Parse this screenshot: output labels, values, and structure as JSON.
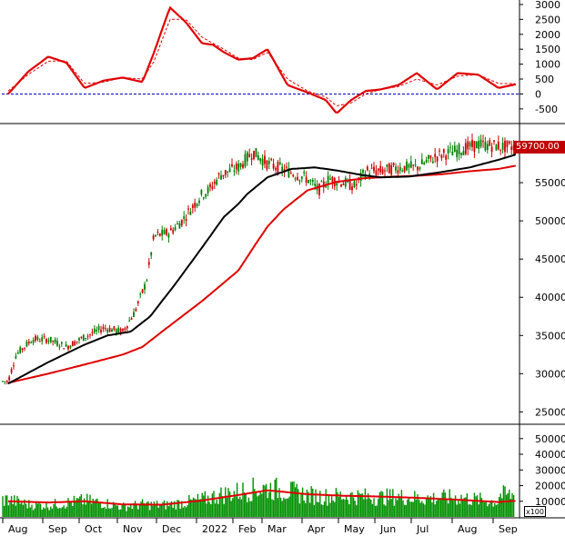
{
  "price_label": "59700.00",
  "scale_note": "x100",
  "months": [
    "Aug",
    "Sep",
    "Oct",
    "Nov",
    "Dec",
    "2022",
    "Feb",
    "Mar",
    "Apr",
    "May",
    "Jun",
    "Jul",
    "Aug",
    "Sep"
  ],
  "colors": {
    "up": "#008000",
    "down": "#d00000",
    "ma_fast": "#000000",
    "ma_slow": "#e00000",
    "macd": "#e00000",
    "zero_line": "#0000cc",
    "volume": "#009000"
  },
  "chart_data": [
    {
      "type": "line",
      "panel": "oscillator",
      "yticks": [
        -500,
        0,
        500,
        1000,
        1500,
        2000,
        2500,
        3000
      ],
      "ylim": [
        -900,
        3150
      ],
      "reference_line": 0,
      "series": [
        {
          "style": "solid",
          "values": [
            [
              0,
              0
            ],
            [
              0.5,
              750
            ],
            [
              1,
              1250
            ],
            [
              1.5,
              1050
            ],
            [
              2,
              200
            ],
            [
              2.5,
              450
            ],
            [
              3,
              550
            ],
            [
              3.5,
              400
            ],
            [
              3.8,
              1400
            ],
            [
              4.2,
              2900
            ],
            [
              4.6,
              2400
            ],
            [
              5,
              1700
            ],
            [
              5.3,
              1650
            ],
            [
              5.6,
              1400
            ],
            [
              6,
              1150
            ],
            [
              6.5,
              1200
            ],
            [
              7,
              1500
            ],
            [
              7.5,
              300
            ],
            [
              8,
              50
            ],
            [
              8.5,
              -200
            ],
            [
              8.8,
              -650
            ],
            [
              9.2,
              -200
            ],
            [
              9.6,
              100
            ],
            [
              10,
              150
            ],
            [
              10.5,
              300
            ],
            [
              11,
              700
            ],
            [
              11.5,
              150
            ],
            [
              12,
              700
            ],
            [
              12.5,
              650
            ],
            [
              13,
              200
            ],
            [
              13.5,
              350
            ]
          ]
        },
        {
          "style": "dashed",
          "values": [
            [
              0,
              100
            ],
            [
              0.5,
              650
            ],
            [
              1,
              1100
            ],
            [
              1.5,
              1100
            ],
            [
              2,
              350
            ],
            [
              2.5,
              400
            ],
            [
              3,
              550
            ],
            [
              3.5,
              500
            ],
            [
              3.8,
              1100
            ],
            [
              4.2,
              2500
            ],
            [
              4.6,
              2500
            ],
            [
              5,
              1900
            ],
            [
              5.3,
              1700
            ],
            [
              5.6,
              1500
            ],
            [
              6,
              1200
            ],
            [
              6.5,
              1150
            ],
            [
              7,
              1400
            ],
            [
              7.5,
              500
            ],
            [
              8,
              100
            ],
            [
              8.5,
              -100
            ],
            [
              8.8,
              -400
            ],
            [
              9.2,
              -300
            ],
            [
              9.6,
              0
            ],
            [
              10,
              150
            ],
            [
              10.5,
              250
            ],
            [
              11,
              500
            ],
            [
              11.5,
              300
            ],
            [
              12,
              600
            ],
            [
              12.5,
              650
            ],
            [
              13,
              350
            ],
            [
              13.5,
              350
            ]
          ]
        }
      ]
    },
    {
      "type": "candlestick",
      "panel": "price",
      "yticks": [
        25000,
        30000,
        35000,
        40000,
        45000,
        50000,
        55000,
        60000
      ],
      "ylim": [
        23500,
        62500
      ],
      "last_price": 59700,
      "close": [
        [
          0,
          29000
        ],
        [
          0.2,
          32500
        ],
        [
          0.6,
          34500
        ],
        [
          1,
          34500
        ],
        [
          1.5,
          33500
        ],
        [
          2,
          34800
        ],
        [
          2.5,
          36000
        ],
        [
          3,
          35500
        ],
        [
          3.3,
          38000
        ],
        [
          3.6,
          42000
        ],
        [
          3.8,
          48000
        ],
        [
          4.2,
          48500
        ],
        [
          4.5,
          50000
        ],
        [
          5,
          53500
        ],
        [
          5.2,
          54000
        ],
        [
          5.5,
          56000
        ],
        [
          6,
          57000
        ],
        [
          6.5,
          59000
        ],
        [
          7,
          57500
        ],
        [
          7.5,
          56500
        ],
        [
          8,
          55500
        ],
        [
          8.3,
          54000
        ],
        [
          8.6,
          55500
        ],
        [
          9,
          55000
        ],
        [
          9.3,
          54500
        ],
        [
          9.6,
          56500
        ],
        [
          10,
          56500
        ],
        [
          10.5,
          57000
        ],
        [
          11,
          57000
        ],
        [
          11.5,
          58500
        ],
        [
          12,
          59200
        ],
        [
          12.5,
          60000
        ],
        [
          13,
          59800
        ],
        [
          13.3,
          60300
        ],
        [
          13.5,
          59700
        ]
      ],
      "series": [
        {
          "name": "",
          "style": "ma_fast",
          "values": [
            [
              0,
              28700
            ],
            [
              1,
              31500
            ],
            [
              2,
              33800
            ],
            [
              2.6,
              35000
            ],
            [
              3.2,
              35500
            ],
            [
              3.7,
              37500
            ],
            [
              4.3,
              41500
            ],
            [
              5,
              46500
            ],
            [
              5.6,
              50500
            ],
            [
              6.3,
              53500
            ],
            [
              7,
              55700
            ],
            [
              7.6,
              56800
            ],
            [
              8.2,
              57000
            ],
            [
              8.8,
              56600
            ],
            [
              9.5,
              56000
            ],
            [
              10,
              55700
            ],
            [
              10.8,
              55800
            ],
            [
              11.5,
              56300
            ],
            [
              12.3,
              57000
            ],
            [
              13,
              58000
            ],
            [
              13.5,
              58800
            ]
          ]
        },
        {
          "name": "",
          "style": "ma_slow",
          "values": [
            [
              0,
              28800
            ],
            [
              1,
              30000
            ],
            [
              2,
              31200
            ],
            [
              3,
              32500
            ],
            [
              3.5,
              33500
            ],
            [
              4,
              35500
            ],
            [
              5,
              39500
            ],
            [
              6,
              43500
            ],
            [
              6.6,
              47000
            ],
            [
              7.4,
              51500
            ],
            [
              8,
              54000
            ],
            [
              8.8,
              55100
            ],
            [
              9.6,
              55600
            ],
            [
              10.4,
              55800
            ],
            [
              11,
              55900
            ],
            [
              11.6,
              56100
            ],
            [
              12.3,
              56500
            ],
            [
              13,
              56800
            ],
            [
              13.5,
              57300
            ]
          ]
        }
      ]
    },
    {
      "type": "bar",
      "panel": "volume",
      "yticks": [
        10000,
        20000,
        30000,
        40000,
        50000
      ],
      "ylim": [
        0,
        58000
      ],
      "units_multiplier": 100,
      "volume": [
        [
          0,
          11000
        ],
        [
          0.5,
          8000
        ],
        [
          1,
          7500
        ],
        [
          1.5,
          9000
        ],
        [
          2,
          10500
        ],
        [
          2.5,
          9000
        ],
        [
          3,
          6500
        ],
        [
          3.5,
          8000
        ],
        [
          4,
          7500
        ],
        [
          4.5,
          9000
        ],
        [
          5,
          11000
        ],
        [
          5.5,
          14000
        ],
        [
          6,
          16000
        ],
        [
          6.5,
          17500
        ],
        [
          7,
          18500
        ],
        [
          7.5,
          16500
        ],
        [
          8,
          14000
        ],
        [
          8.5,
          13000
        ],
        [
          9,
          13500
        ],
        [
          9.5,
          13000
        ],
        [
          10,
          12500
        ],
        [
          10.5,
          13000
        ],
        [
          11,
          12000
        ],
        [
          11.5,
          12000
        ],
        [
          12,
          12500
        ],
        [
          12.5,
          11000
        ],
        [
          13,
          9500
        ],
        [
          13.5,
          14000
        ]
      ],
      "series": [
        {
          "name": "",
          "style": "volume_ma",
          "values": [
            [
              0,
              10000
            ],
            [
              1,
              9200
            ],
            [
              2,
              10000
            ],
            [
              3,
              8000
            ],
            [
              4,
              7800
            ],
            [
              5,
              10500
            ],
            [
              6,
              14000
            ],
            [
              7,
              17000
            ],
            [
              8,
              14500
            ],
            [
              9,
              13500
            ],
            [
              10,
              13000
            ],
            [
              11,
              12200
            ],
            [
              12,
              11000
            ],
            [
              13,
              9500
            ],
            [
              13.5,
              10500
            ]
          ]
        }
      ]
    }
  ]
}
